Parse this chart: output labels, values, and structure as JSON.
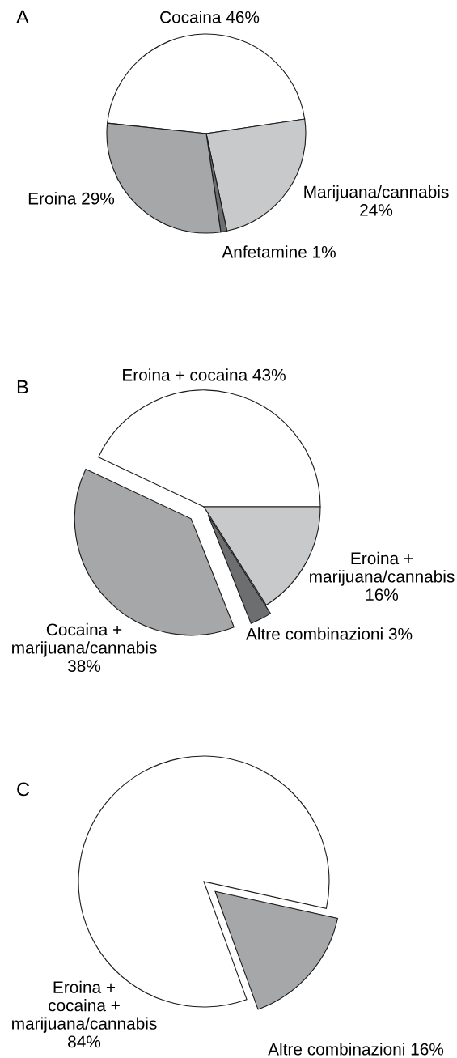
{
  "chart_data": [
    {
      "type": "pie",
      "title": "A",
      "categories": [
        "Cocaina",
        "Marijuana/cannabis",
        "Anfetamine",
        "Eroina"
      ],
      "values": [
        46,
        24,
        1,
        29
      ],
      "colors": [
        "#ffffff",
        "#c8c9cb",
        "#6d6e70",
        "#a6a7a9"
      ],
      "value_labels": [
        "46%",
        "24%",
        "1%",
        "29%"
      ]
    },
    {
      "type": "pie",
      "title": "B",
      "categories": [
        "Eroina + cocaina",
        "Eroina +\nmarijuana/cannabis",
        "Altre combinazioni",
        "Cocaina +\nmarijuana/cannabis"
      ],
      "values": [
        43,
        16,
        3,
        38
      ],
      "colors": [
        "#ffffff",
        "#c8c9cb",
        "#6d6e70",
        "#a6a7a9"
      ],
      "value_labels": [
        "43%",
        "16%",
        "3%",
        "38%"
      ]
    },
    {
      "type": "pie",
      "title": "C",
      "categories": [
        "Eroina +\ncocaina +\nmarijuana/cannabis",
        "Altre combinazioni"
      ],
      "values": [
        84,
        16
      ],
      "colors": [
        "#ffffff",
        "#a6a7a9"
      ],
      "value_labels": [
        "84%",
        "16%"
      ]
    }
  ]
}
